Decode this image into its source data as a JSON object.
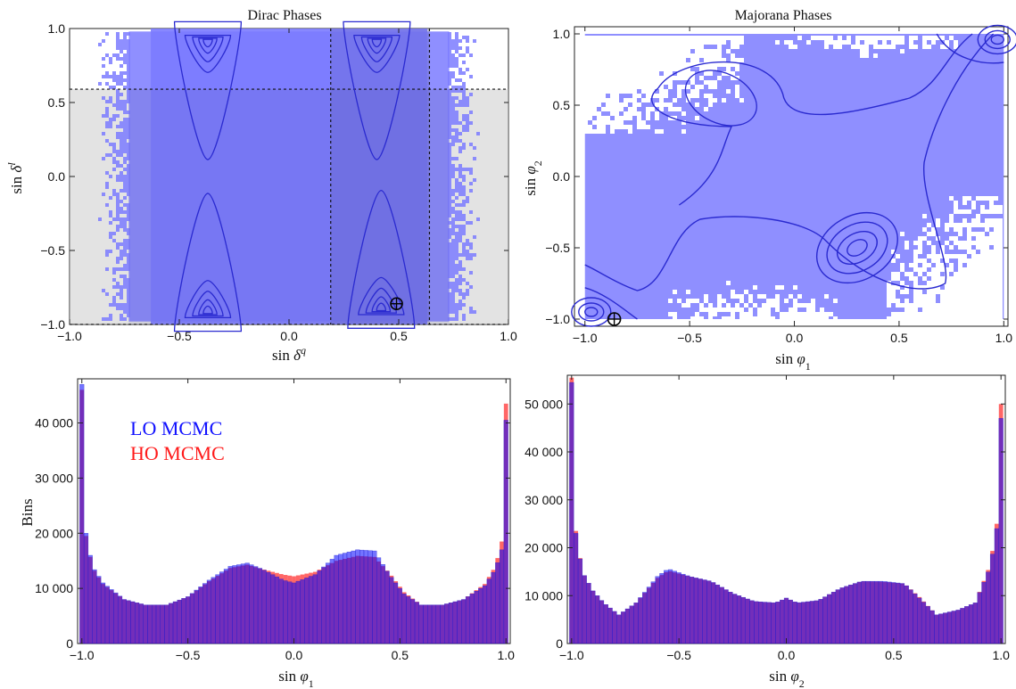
{
  "chart_data": [
    {
      "type": "heatmap",
      "title": "Dirac Phases",
      "xlabel": "sin δ^q",
      "ylabel": "sin δ^l",
      "xlim": [
        -1,
        1
      ],
      "ylim": [
        -1,
        1
      ],
      "xticks": [
        -1.0,
        -0.5,
        0.0,
        0.5,
        1.0
      ],
      "yticks": [
        -1.0,
        -0.5,
        0.0,
        0.5,
        1.0
      ],
      "xticklabels": [
        "−1.0",
        "−0.5",
        "0.0",
        "0.5",
        "1.0"
      ],
      "yticklabels": [
        "−1.0",
        "−0.5",
        "0.0",
        "0.5",
        "1.0"
      ],
      "shaded_regions": [
        {
          "x": [
            -1.0,
            1.0
          ],
          "y": [
            -1.0,
            0.59
          ]
        },
        {
          "x": [
            0.19,
            0.64
          ],
          "y": [
            -1.0,
            1.0
          ]
        }
      ],
      "density_peaks": [
        {
          "x": -0.37,
          "y": 0.92
        },
        {
          "x": 0.4,
          "y": 0.92
        },
        {
          "x": -0.37,
          "y": -0.92
        },
        {
          "x": 0.42,
          "y": -0.9
        }
      ],
      "best_fit_marker": {
        "x": 0.49,
        "y": -0.86
      },
      "color": "#7b7bff",
      "contour_color": "#2a2ad0"
    },
    {
      "type": "heatmap",
      "title": "Majorana Phases",
      "xlabel": "sin φ1",
      "ylabel": "sin φ2",
      "xlim": [
        -1.05,
        1.02
      ],
      "ylim": [
        -1.05,
        1.05
      ],
      "xticks": [
        -1.0,
        -0.5,
        0.0,
        0.5,
        1.0
      ],
      "yticks": [
        -1.0,
        -0.5,
        0.0,
        0.5,
        1.0
      ],
      "xticklabels": [
        "−1.0",
        "−0.5",
        "0.0",
        "0.5",
        "1.0"
      ],
      "yticklabels": [
        "−1.0",
        "−0.5",
        "0.0",
        "0.5",
        "1.0"
      ],
      "density_peaks": [
        {
          "x": -0.35,
          "y": 0.55
        },
        {
          "x": 0.3,
          "y": -0.5
        },
        {
          "x": -0.97,
          "y": -0.95
        },
        {
          "x": 0.97,
          "y": 0.96
        }
      ],
      "best_fit_marker": {
        "x": -0.86,
        "y": -1.0
      },
      "color": "#7b7bff",
      "contour_color": "#2a2ad0"
    },
    {
      "type": "bar",
      "xlabel": "sin φ1",
      "ylabel": "Bins",
      "xlim": [
        -1.02,
        1.02
      ],
      "ylim": [
        0,
        48000
      ],
      "xticks": [
        -1.0,
        -0.5,
        0.0,
        0.5,
        1.0
      ],
      "xticklabels": [
        "−1.0",
        "−0.5",
        "0.0",
        "0.5",
        "1.0"
      ],
      "yticks": [
        0,
        10000,
        20000,
        30000,
        40000
      ],
      "yticklabels": [
        "0",
        "10 000",
        "20 000",
        "30 000",
        "40 000"
      ],
      "bin_edges": [
        -1.0,
        1.0
      ],
      "bin_count": 101,
      "series": [
        {
          "name": "LO MCMC",
          "color": "#0000ff",
          "anchors": [
            [
              -1.0,
              47000
            ],
            [
              -0.98,
              20000
            ],
            [
              -0.95,
              14000
            ],
            [
              -0.9,
              11000
            ],
            [
              -0.8,
              8000
            ],
            [
              -0.7,
              7000
            ],
            [
              -0.6,
              7000
            ],
            [
              -0.5,
              8500
            ],
            [
              -0.4,
              11500
            ],
            [
              -0.3,
              14000
            ],
            [
              -0.22,
              14600
            ],
            [
              -0.15,
              13500
            ],
            [
              -0.05,
              11500
            ],
            [
              0.0,
              11000
            ],
            [
              0.1,
              12500
            ],
            [
              0.2,
              16000
            ],
            [
              0.3,
              17000
            ],
            [
              0.38,
              16800
            ],
            [
              0.45,
              12500
            ],
            [
              0.52,
              9000
            ],
            [
              0.6,
              7000
            ],
            [
              0.7,
              7000
            ],
            [
              0.8,
              8000
            ],
            [
              0.9,
              10500
            ],
            [
              0.95,
              13500
            ],
            [
              0.98,
              17000
            ],
            [
              1.0,
              40500
            ]
          ]
        },
        {
          "name": "HO MCMC",
          "color": "#ff0000",
          "anchors": [
            [
              -1.0,
              46000
            ],
            [
              -0.98,
              19500
            ],
            [
              -0.95,
              13800
            ],
            [
              -0.9,
              10800
            ],
            [
              -0.8,
              8000
            ],
            [
              -0.7,
              7000
            ],
            [
              -0.6,
              7000
            ],
            [
              -0.5,
              8500
            ],
            [
              -0.4,
              11300
            ],
            [
              -0.3,
              13700
            ],
            [
              -0.22,
              14300
            ],
            [
              -0.15,
              13500
            ],
            [
              -0.05,
              12500
            ],
            [
              0.0,
              12200
            ],
            [
              0.1,
              13000
            ],
            [
              0.2,
              15000
            ],
            [
              0.3,
              15900
            ],
            [
              0.38,
              15700
            ],
            [
              0.45,
              12800
            ],
            [
              0.52,
              9300
            ],
            [
              0.6,
              7000
            ],
            [
              0.7,
              7000
            ],
            [
              0.8,
              8000
            ],
            [
              0.9,
              10800
            ],
            [
              0.95,
              14000
            ],
            [
              0.98,
              18500
            ],
            [
              1.0,
              43500
            ]
          ]
        }
      ]
    },
    {
      "type": "bar",
      "xlabel": "sin φ2",
      "ylabel": "",
      "xlim": [
        -1.02,
        1.02
      ],
      "ylim": [
        0,
        56000
      ],
      "xticks": [
        -1.0,
        -0.5,
        0.0,
        0.5,
        1.0
      ],
      "xticklabels": [
        "−1.0",
        "−0.5",
        "0.0",
        "0.5",
        "1.0"
      ],
      "yticks": [
        0,
        10000,
        20000,
        30000,
        40000,
        50000
      ],
      "yticklabels": [
        "0",
        "10 000",
        "20 000",
        "30 000",
        "40 000",
        "50 000"
      ],
      "bin_edges": [
        -1.0,
        1.0
      ],
      "bin_count": 101,
      "series": [
        {
          "name": "LO MCMC",
          "color": "#0000ff",
          "anchors": [
            [
              -1.0,
              54500
            ],
            [
              -0.98,
              23000
            ],
            [
              -0.95,
              15000
            ],
            [
              -0.9,
              11000
            ],
            [
              -0.85,
              8500
            ],
            [
              -0.78,
              6000
            ],
            [
              -0.7,
              8500
            ],
            [
              -0.6,
              14000
            ],
            [
              -0.55,
              15600
            ],
            [
              -0.45,
              14000
            ],
            [
              -0.35,
              13000
            ],
            [
              -0.25,
              10500
            ],
            [
              -0.15,
              8800
            ],
            [
              -0.05,
              8500
            ],
            [
              0.0,
              9500
            ],
            [
              0.05,
              8500
            ],
            [
              0.15,
              9000
            ],
            [
              0.25,
              11500
            ],
            [
              0.35,
              13000
            ],
            [
              0.45,
              13000
            ],
            [
              0.55,
              12500
            ],
            [
              0.62,
              9500
            ],
            [
              0.7,
              6000
            ],
            [
              0.8,
              7000
            ],
            [
              0.88,
              8500
            ],
            [
              0.95,
              16000
            ],
            [
              0.98,
              24000
            ],
            [
              1.0,
              47000
            ]
          ]
        },
        {
          "name": "HO MCMC",
          "color": "#ff0000",
          "anchors": [
            [
              -1.0,
              55500
            ],
            [
              -0.98,
              23500
            ],
            [
              -0.95,
              15000
            ],
            [
              -0.9,
              11000
            ],
            [
              -0.85,
              8500
            ],
            [
              -0.78,
              6000
            ],
            [
              -0.7,
              8500
            ],
            [
              -0.6,
              13700
            ],
            [
              -0.55,
              15200
            ],
            [
              -0.45,
              14000
            ],
            [
              -0.35,
              13000
            ],
            [
              -0.25,
              10500
            ],
            [
              -0.15,
              8800
            ],
            [
              -0.05,
              8500
            ],
            [
              0.0,
              9500
            ],
            [
              0.05,
              8500
            ],
            [
              0.15,
              9000
            ],
            [
              0.25,
              11500
            ],
            [
              0.35,
              13000
            ],
            [
              0.45,
              12900
            ],
            [
              0.55,
              12500
            ],
            [
              0.62,
              9700
            ],
            [
              0.7,
              6000
            ],
            [
              0.8,
              7000
            ],
            [
              0.88,
              8500
            ],
            [
              0.95,
              16500
            ],
            [
              0.98,
              25000
            ],
            [
              1.0,
              50000
            ]
          ]
        }
      ]
    }
  ]
}
